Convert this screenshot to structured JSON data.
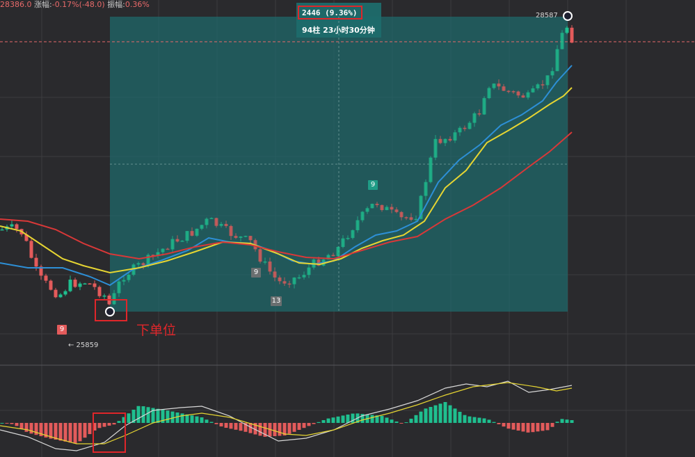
{
  "header": {
    "price": "28386.0",
    "change_label": "涨幅:",
    "change_value": "-0.17%(-48.0)",
    "amplitude_label": "振幅:",
    "amplitude_value": "0.36%"
  },
  "measure": {
    "value": "2446 (9.36%)",
    "info": "94柱 23小时30分钟"
  },
  "price_markers": {
    "high": "28587",
    "low": "← 25859"
  },
  "tags": {
    "red_9": "9",
    "green_9": "9",
    "gray_9": "9",
    "gray_13": "13"
  },
  "annotation": {
    "order_label": "下单位"
  },
  "colors": {
    "background": "#2a2a2d",
    "grid": "#3c3c40",
    "up": "#1fbf8f",
    "down": "#e35b5b",
    "measure_fill": "#1e6b6c",
    "ma_fast": "#2d8fd6",
    "ma_mid": "#e6d532",
    "ma_slow": "#d93838",
    "highlight": "#e0262a"
  },
  "chart_data": {
    "type": "candlestick",
    "instrument_price": 28386.0,
    "measure_range": {
      "low": 25859,
      "high": 28587,
      "change": 2446,
      "change_pct": 9.36,
      "bars": 94,
      "duration": "23小时30分钟"
    },
    "main_chart": {
      "ylim": [
        25700,
        28720
      ],
      "moving_averages": [
        "ma_fast",
        "ma_mid",
        "ma_slow"
      ]
    },
    "oscillator": {
      "type": "macd",
      "lines": [
        "dif",
        "dea"
      ],
      "histogram": true
    },
    "annotation": "下单位"
  }
}
